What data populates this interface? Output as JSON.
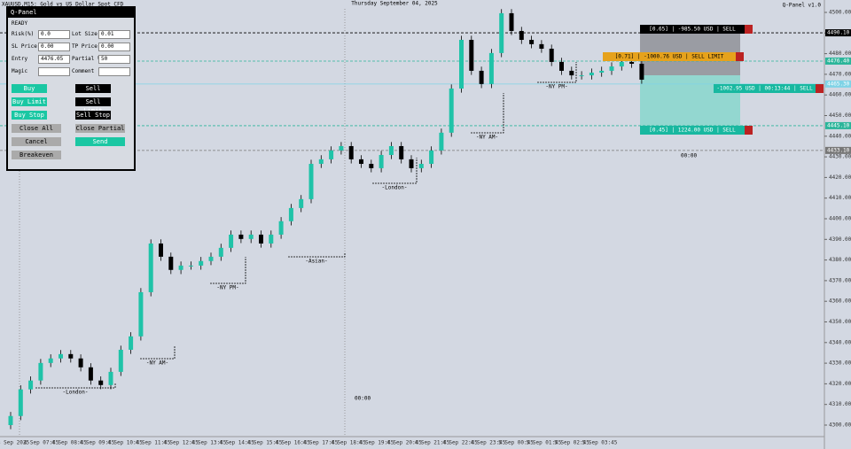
{
  "header": {
    "symbol": "XAUUSD,M15: Gold vs US Dollar Spot CFD",
    "date": "Thursday September 04, 2025",
    "indicator": "Q-Panel v1.0"
  },
  "panel": {
    "title": "Q-Panel",
    "status": "READY",
    "fields": [
      {
        "label": "Risk(%)",
        "value": "0.0"
      },
      {
        "label": "Lot Size",
        "value": "0.01"
      },
      {
        "label": "SL Price",
        "value": "0.00"
      },
      {
        "label": "TP Price",
        "value": "0.00"
      },
      {
        "label": "Entry",
        "value": "4476.05"
      },
      {
        "label": "Partial %",
        "value": "50"
      },
      {
        "label": "Magic"
      },
      {
        "label": "Comment"
      }
    ],
    "buttons": [
      "Buy",
      "Sell",
      "Buy Limit",
      "Sell Limit",
      "Buy Stop",
      "Sell Stop",
      "Close All",
      "Close Partial",
      "Cancel",
      "Send",
      "Breakeven"
    ]
  },
  "chart_data": {
    "type": "candlestick",
    "ylim": [
      4300,
      4500
    ],
    "yticks": [
      {
        "value": 4300,
        "label": "4300.00"
      },
      {
        "value": 4310,
        "label": "4310.00"
      },
      {
        "value": 4320,
        "label": "4320.00"
      },
      {
        "value": 4330,
        "label": "4330.00"
      },
      {
        "value": 4340,
        "label": "4340.00"
      },
      {
        "value": 4350,
        "label": "4350.00"
      },
      {
        "value": 4360,
        "label": "4360.00"
      },
      {
        "value": 4370,
        "label": "4370.00"
      },
      {
        "value": 4380,
        "label": "4380.00"
      },
      {
        "value": 4390,
        "label": "4390.00"
      },
      {
        "value": 4400,
        "label": "4400.00"
      },
      {
        "value": 4410,
        "label": "4410.00"
      },
      {
        "value": 4420,
        "label": "4420.00"
      },
      {
        "value": 4430,
        "label": "4430.00"
      },
      {
        "value": 4440,
        "label": "4440.00"
      },
      {
        "value": 4450,
        "label": "4450.00"
      },
      {
        "value": 4460,
        "label": "4460.00"
      },
      {
        "value": 4470,
        "label": "4470.00"
      },
      {
        "value": 4480,
        "label": "4480.00"
      },
      {
        "value": 4490,
        "label": "4490.00"
      },
      {
        "value": 4500,
        "label": "4500.00"
      }
    ],
    "time_labels": [
      "3 Sep 2025",
      "4 Sep 07:45",
      "4 Sep 08:45",
      "4 Sep 09:45",
      "4 Sep 10:45",
      "4 Sep 11:45",
      "4 Sep 12:45",
      "4 Sep 13:45",
      "4 Sep 14:45",
      "4 Sep 15:45",
      "4 Sep 16:45",
      "4 Sep 17:45",
      "4 Sep 18:45",
      "4 Sep 19:45",
      "4 Sep 20:45",
      "4 Sep 21:45",
      "4 Sep 22:45",
      "4 Sep 23:45",
      "5 Sep 00:45",
      "5 Sep 01:45",
      "5 Sep 02:45",
      "5 Sep 03:45"
    ],
    "bull_color": "#1fc3a8",
    "bear_color": "#000000",
    "candles": [
      [
        4300.0,
        4306.4,
        4298.0,
        4304.4
      ],
      [
        4304.4,
        4319.3,
        4302.4,
        4317.3
      ],
      [
        4317.3,
        4323.6,
        4315.3,
        4321.6
      ],
      [
        4321.6,
        4332.1,
        4319.6,
        4330.1
      ],
      [
        4330.1,
        4334.3,
        4328.1,
        4332.3
      ],
      [
        4332.3,
        4336.4,
        4330.3,
        4334.4
      ],
      [
        4334.4,
        4336.4,
        4330.3,
        4332.3
      ],
      [
        4332.3,
        4334.3,
        4326.0,
        4328.0
      ],
      [
        4328.0,
        4330.0,
        4319.6,
        4321.6
      ],
      [
        4321.6,
        4323.6,
        4317.4,
        4319.4
      ],
      [
        4319.4,
        4327.8,
        4317.4,
        4325.8
      ],
      [
        4325.8,
        4338.5,
        4323.8,
        4336.5
      ],
      [
        4336.5,
        4345.0,
        4334.5,
        4343.0
      ],
      [
        4343.0,
        4366.4,
        4341.0,
        4364.4
      ],
      [
        4364.4,
        4390.0,
        4362.4,
        4388.0
      ],
      [
        4388.0,
        4390.0,
        4379.6,
        4381.6
      ],
      [
        4381.6,
        4383.6,
        4373.2,
        4375.2
      ],
      [
        4375.2,
        4379.3,
        4373.2,
        4377.3
      ],
      [
        4377.3,
        4379.3,
        4375.3,
        4377.3
      ],
      [
        4377.3,
        4381.5,
        4375.3,
        4379.5
      ],
      [
        4379.5,
        4383.6,
        4377.5,
        4381.6
      ],
      [
        4381.6,
        4387.9,
        4379.6,
        4385.9
      ],
      [
        4385.9,
        4394.3,
        4383.9,
        4392.3
      ],
      [
        4392.3,
        4394.3,
        4388.2,
        4390.2
      ],
      [
        4390.2,
        4394.3,
        4388.2,
        4392.3
      ],
      [
        4392.3,
        4394.3,
        4386.0,
        4388.0
      ],
      [
        4388.0,
        4394.3,
        4386.0,
        4392.3
      ],
      [
        4392.3,
        4400.8,
        4390.3,
        4398.8
      ],
      [
        4398.8,
        4407.2,
        4396.8,
        4405.2
      ],
      [
        4405.2,
        4411.5,
        4403.2,
        4409.5
      ],
      [
        4409.5,
        4428.6,
        4407.5,
        4426.6
      ],
      [
        4426.6,
        4430.8,
        4424.6,
        4428.8
      ],
      [
        4428.8,
        4435.1,
        4426.8,
        4433.1
      ],
      [
        4433.1,
        4437.2,
        4431.1,
        4435.2
      ],
      [
        4435.2,
        4437.2,
        4426.8,
        4428.8
      ],
      [
        4428.8,
        4430.8,
        4424.6,
        4426.6
      ],
      [
        4426.6,
        4428.6,
        4422.5,
        4424.5
      ],
      [
        4424.5,
        4432.9,
        4422.5,
        4430.9
      ],
      [
        4430.9,
        4437.2,
        4428.9,
        4435.2
      ],
      [
        4435.2,
        4437.2,
        4426.8,
        4428.8
      ],
      [
        4428.8,
        4430.8,
        4422.5,
        4424.5
      ],
      [
        4424.5,
        4428.6,
        4422.5,
        4426.6
      ],
      [
        4426.6,
        4435.1,
        4424.6,
        4433.1
      ],
      [
        4433.1,
        4443.7,
        4431.1,
        4441.7
      ],
      [
        4441.7,
        4465.1,
        4439.7,
        4463.1
      ],
      [
        4463.1,
        4488.7,
        4461.1,
        4486.7
      ],
      [
        4486.7,
        4488.7,
        4469.7,
        4471.7
      ],
      [
        4471.7,
        4473.7,
        4463.3,
        4465.3
      ],
      [
        4465.3,
        4482.3,
        4463.3,
        4480.3
      ],
      [
        4480.3,
        4501.6,
        4478.3,
        4499.6
      ],
      [
        4499.6,
        4501.6,
        4489.0,
        4491.0
      ],
      [
        4491.0,
        4493.0,
        4484.7,
        4486.7
      ],
      [
        4486.7,
        4488.7,
        4482.6,
        4484.6
      ],
      [
        4484.6,
        4486.6,
        4480.4,
        4482.4
      ],
      [
        4482.4,
        4484.4,
        4474.0,
        4476.0
      ],
      [
        4476.0,
        4478.0,
        4469.7,
        4471.7
      ],
      [
        4471.7,
        4473.7,
        4467.5,
        4469.5
      ],
      [
        4469.5,
        4471.5,
        4467.5,
        4469.5
      ],
      [
        4469.5,
        4472.8,
        4467.5,
        4470.8
      ],
      [
        4470.8,
        4473.7,
        4468.8,
        4471.7
      ],
      [
        4471.7,
        4475.8,
        4469.7,
        4473.8
      ],
      [
        4473.8,
        4478.0,
        4471.8,
        4476.0
      ],
      [
        4476.0,
        4478.0,
        4473.1,
        4475.1
      ],
      [
        4475.1,
        4477.1,
        4465.4,
        4467.4
      ]
    ],
    "levels": [
      {
        "value": 4490.1,
        "label": "4490.10",
        "color": "#000000"
      },
      {
        "value": 4476.4,
        "label": "4476.40",
        "color": "#2bb59a"
      },
      {
        "value": 4465.3,
        "label": "4465.30",
        "color": "#7fd3e6"
      },
      {
        "value": 4445.1,
        "label": "4445.10",
        "color": "#2bb59a"
      },
      {
        "value": 4433.1,
        "label": "4433.10",
        "color": "#777777"
      }
    ],
    "trades": [
      "[0.65] | -985.50 USD | SELL",
      "[0.71] | -1000.76 USD | SELL LIMIT",
      "-1002.95 USD | 00:13:44 | SELL",
      "[0.45] | 1224.00 USD | SELL"
    ],
    "sessions": [
      "-London-",
      "-NY AM-",
      "-NY PM-",
      "-Asian-",
      "-London-",
      "-NY AM-",
      "-NY PM-"
    ],
    "day_markers": [
      "00:00",
      "00:00"
    ]
  }
}
